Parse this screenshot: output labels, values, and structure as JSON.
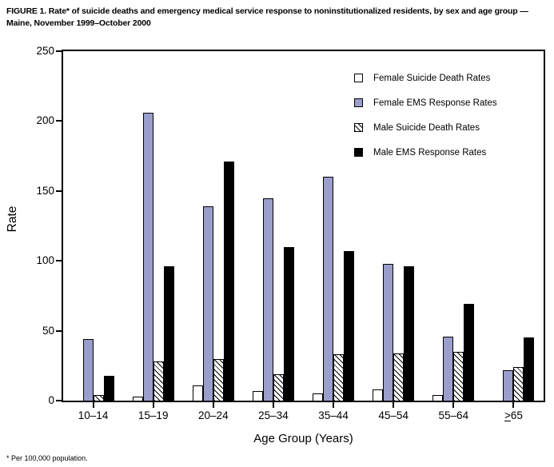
{
  "figure": {
    "title": "FIGURE 1. Rate* of suicide deaths and emergency medical service response to noninstitutionalized residents, by sex and age group — Maine, November 1999–October 2000",
    "footnote": "* Per 100,000 population."
  },
  "chart_data": {
    "type": "bar",
    "title": "Rate of suicide deaths and emergency medical service response to noninstitutionalized residents, by sex and age group — Maine, November 1999–October 2000",
    "xlabel": "Age Group (Years)",
    "ylabel": "Rate",
    "ylim": [
      0,
      250
    ],
    "y_ticks": [
      0,
      50,
      100,
      150,
      200,
      250
    ],
    "grid": false,
    "legend_position": "inside-top-right",
    "categories": [
      "10–14",
      "15–19",
      "20–24",
      "25–34",
      "35–44",
      "45–54",
      "55–64",
      ">65"
    ],
    "categories_note": "last category means greater-than-or-equal-to 65, drawn as underlined > plus 65",
    "series": [
      {
        "name": "Female Suicide Death Rates",
        "key": "female_suicide",
        "color": "#ffffff",
        "pattern": "solid",
        "values": [
          0,
          3,
          11,
          7,
          5,
          8,
          4,
          0
        ]
      },
      {
        "name": "Female EMS Response Rates",
        "key": "female_ems",
        "color": "#9a9ecb",
        "pattern": "solid",
        "values": [
          44,
          206,
          139,
          145,
          160,
          98,
          46,
          22
        ]
      },
      {
        "name": "Male Suicide Death Rates",
        "key": "male_suicide",
        "color": "#ffffff",
        "pattern": "diagonal-hatch",
        "values": [
          4,
          28,
          30,
          19,
          33,
          34,
          35,
          24
        ]
      },
      {
        "name": "Male EMS Response Rates",
        "key": "male_ems",
        "color": "#000000",
        "pattern": "solid",
        "values": [
          18,
          96,
          171,
          110,
          107,
          96,
          69,
          45
        ]
      }
    ]
  }
}
